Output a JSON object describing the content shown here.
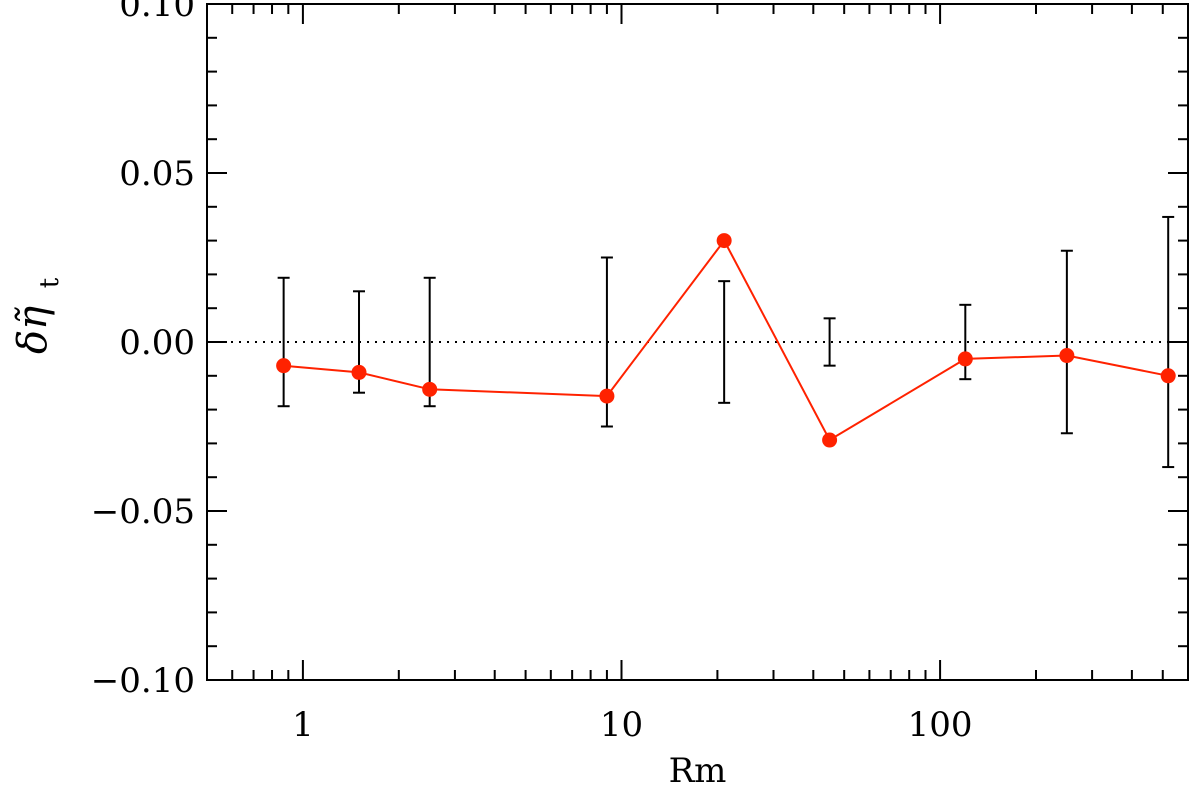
{
  "chart_data": {
    "type": "scatter",
    "xlabel": "Rm",
    "ylabel": {
      "symbol": "δη̃",
      "subscript": "t"
    },
    "x_scale": "log",
    "xlim": [
      0.5,
      600
    ],
    "ylim": [
      -0.1,
      0.1
    ],
    "x_ticks": [
      {
        "value": 1,
        "label": "1"
      },
      {
        "value": 10,
        "label": "10"
      },
      {
        "value": 100,
        "label": "100"
      }
    ],
    "y_ticks": [
      {
        "value": 0.1,
        "label": "0.10"
      },
      {
        "value": 0.05,
        "label": "0.05"
      },
      {
        "value": 0.0,
        "label": "0.00"
      },
      {
        "value": -0.05,
        "label": "−0.05"
      },
      {
        "value": -0.1,
        "label": "−0.10"
      }
    ],
    "reference_line": {
      "y": 0.0,
      "style": "dotted"
    },
    "series": [
      {
        "color": "#ff2200",
        "x": [
          0.87,
          1.5,
          2.5,
          9.0,
          21.0,
          45.0,
          120.0,
          250.0,
          520.0
        ],
        "y": [
          -0.007,
          -0.009,
          -0.014,
          -0.016,
          0.03,
          -0.029,
          -0.005,
          -0.004,
          -0.01
        ]
      }
    ],
    "error_bars": {
      "color": "#000000",
      "x": [
        0.87,
        1.5,
        2.5,
        9.0,
        21.0,
        45.0,
        120.0,
        250.0,
        520.0
      ],
      "half_width": [
        0.019,
        0.015,
        0.019,
        0.025,
        0.018,
        0.007,
        0.011,
        0.027,
        0.037
      ]
    },
    "grid": false
  }
}
